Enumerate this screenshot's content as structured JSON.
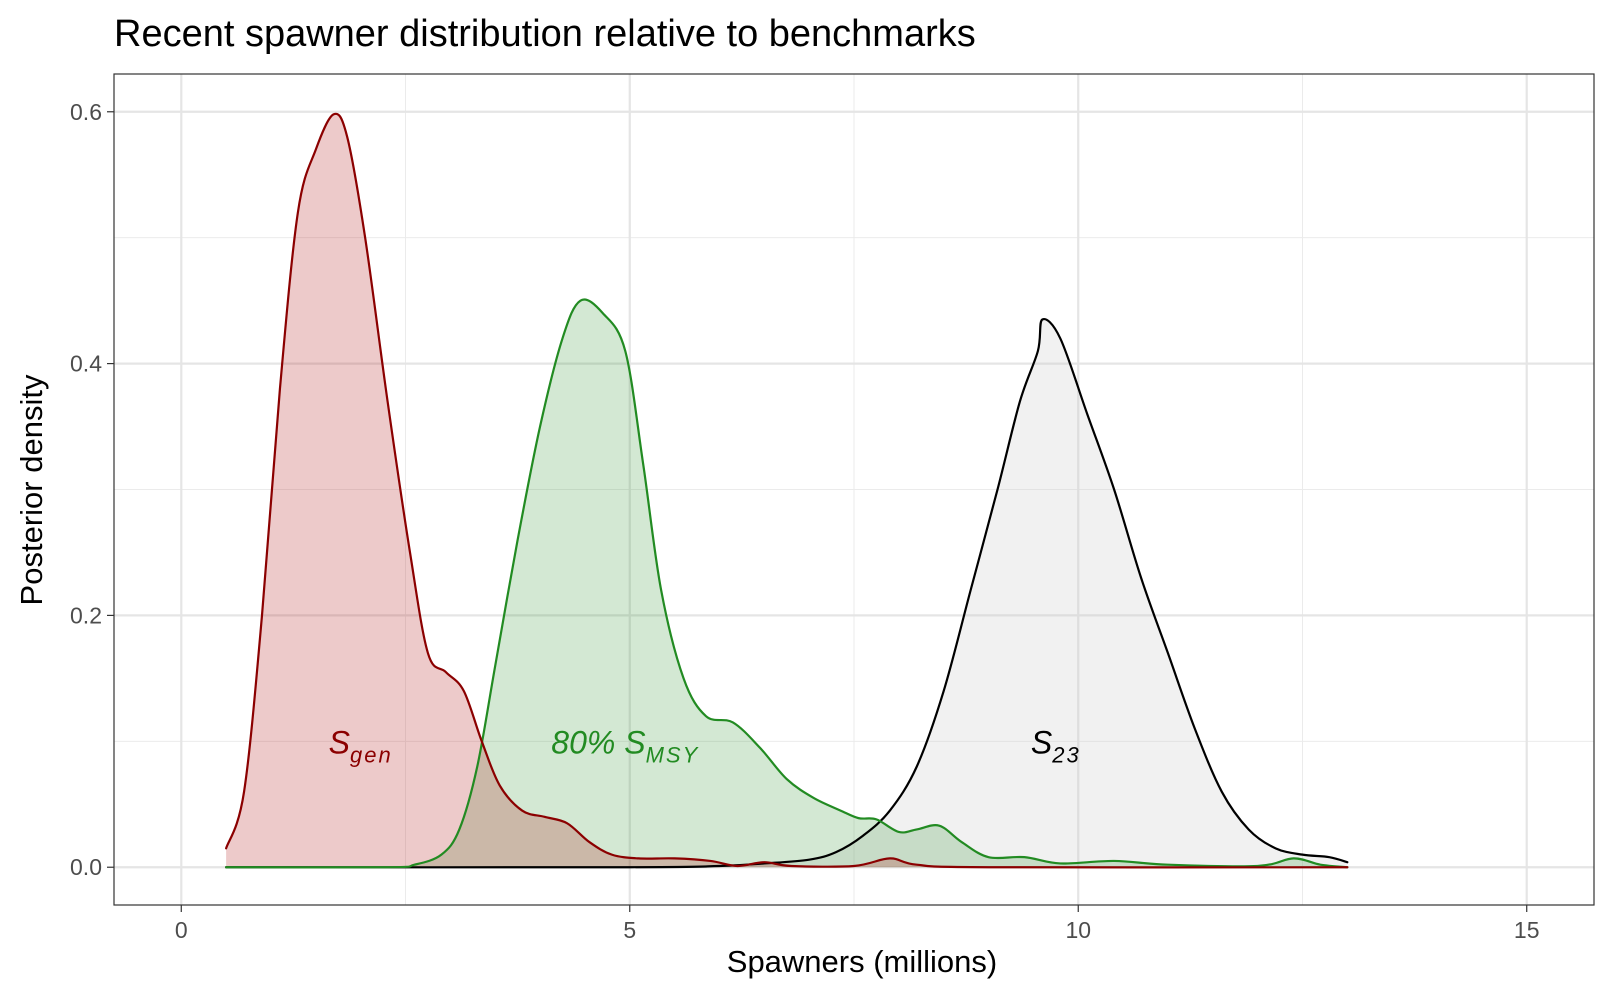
{
  "chart_data": {
    "type": "area",
    "title": "Recent spawner distribution relative to benchmarks",
    "xlabel": "Spawners (millions)",
    "ylabel": "Posterior density",
    "xlim": [
      -0.75,
      15.75
    ],
    "ylim": [
      -0.03,
      0.63
    ],
    "x_ticks": [
      0,
      5,
      10,
      15
    ],
    "x_tick_labels": [
      "0",
      "5",
      "10",
      "15"
    ],
    "y_ticks": [
      0.0,
      0.2,
      0.4,
      0.6
    ],
    "y_tick_labels": [
      "0.0",
      "0.2",
      "0.4",
      "0.6"
    ],
    "grid": true,
    "legend": "none",
    "series": [
      {
        "key": "s23",
        "stroke": "#000000",
        "fill": "#cccccc",
        "fill_opacity": 0.28,
        "points": [
          [
            0.5,
            0
          ],
          [
            5,
            0
          ],
          [
            6,
            0.001
          ],
          [
            6.5,
            0.003
          ],
          [
            7,
            0.006
          ],
          [
            7.3,
            0.012
          ],
          [
            7.6,
            0.025
          ],
          [
            7.9,
            0.045
          ],
          [
            8.2,
            0.08
          ],
          [
            8.5,
            0.14
          ],
          [
            8.8,
            0.22
          ],
          [
            9.1,
            0.3
          ],
          [
            9.35,
            0.37
          ],
          [
            9.55,
            0.41
          ],
          [
            9.6,
            0.435
          ],
          [
            9.8,
            0.42
          ],
          [
            10.1,
            0.36
          ],
          [
            10.4,
            0.3
          ],
          [
            10.7,
            0.23
          ],
          [
            11.0,
            0.17
          ],
          [
            11.3,
            0.11
          ],
          [
            11.6,
            0.06
          ],
          [
            11.9,
            0.03
          ],
          [
            12.2,
            0.015
          ],
          [
            12.5,
            0.01
          ],
          [
            12.8,
            0.008
          ],
          [
            13,
            0.004
          ]
        ]
      },
      {
        "key": "smsy80",
        "stroke": "#228b22",
        "fill": "#228b22",
        "fill_opacity": 0.2,
        "points": [
          [
            0.5,
            0
          ],
          [
            2.3,
            0
          ],
          [
            2.6,
            0.002
          ],
          [
            2.9,
            0.01
          ],
          [
            3.1,
            0.03
          ],
          [
            3.3,
            0.08
          ],
          [
            3.5,
            0.16
          ],
          [
            3.75,
            0.26
          ],
          [
            4.0,
            0.35
          ],
          [
            4.25,
            0.42
          ],
          [
            4.45,
            0.45
          ],
          [
            4.7,
            0.44
          ],
          [
            4.95,
            0.41
          ],
          [
            5.15,
            0.32
          ],
          [
            5.35,
            0.22
          ],
          [
            5.6,
            0.15
          ],
          [
            5.85,
            0.12
          ],
          [
            6.15,
            0.115
          ],
          [
            6.45,
            0.095
          ],
          [
            6.75,
            0.07
          ],
          [
            7.05,
            0.055
          ],
          [
            7.35,
            0.045
          ],
          [
            7.55,
            0.039
          ],
          [
            7.75,
            0.038
          ],
          [
            8.0,
            0.028
          ],
          [
            8.2,
            0.03
          ],
          [
            8.45,
            0.033
          ],
          [
            8.7,
            0.02
          ],
          [
            9.0,
            0.008
          ],
          [
            9.4,
            0.008
          ],
          [
            9.8,
            0.003
          ],
          [
            10.4,
            0.005
          ],
          [
            11.0,
            0.002
          ],
          [
            12.0,
            0.001
          ],
          [
            12.4,
            0.007
          ],
          [
            12.7,
            0.002
          ],
          [
            13,
            0
          ]
        ]
      },
      {
        "key": "sgen",
        "stroke": "#8b0000",
        "fill": "#b22222",
        "fill_opacity": 0.24,
        "points": [
          [
            0.5,
            0.015
          ],
          [
            0.7,
            0.06
          ],
          [
            0.9,
            0.2
          ],
          [
            1.1,
            0.38
          ],
          [
            1.3,
            0.52
          ],
          [
            1.5,
            0.57
          ],
          [
            1.7,
            0.598
          ],
          [
            1.85,
            0.58
          ],
          [
            2.05,
            0.5
          ],
          [
            2.3,
            0.37
          ],
          [
            2.55,
            0.25
          ],
          [
            2.75,
            0.17
          ],
          [
            2.95,
            0.155
          ],
          [
            3.15,
            0.14
          ],
          [
            3.35,
            0.1
          ],
          [
            3.55,
            0.065
          ],
          [
            3.8,
            0.045
          ],
          [
            4.05,
            0.04
          ],
          [
            4.3,
            0.035
          ],
          [
            4.55,
            0.02
          ],
          [
            4.8,
            0.01
          ],
          [
            5.1,
            0.007
          ],
          [
            5.5,
            0.007
          ],
          [
            5.9,
            0.005
          ],
          [
            6.2,
            0.001
          ],
          [
            6.5,
            0.004
          ],
          [
            6.8,
            0.001
          ],
          [
            7.5,
            0.001
          ],
          [
            7.9,
            0.007
          ],
          [
            8.2,
            0.002
          ],
          [
            9,
            0
          ],
          [
            13,
            0
          ]
        ]
      }
    ],
    "annotations": [
      {
        "key": "sgen",
        "text": "S",
        "sub": "gen",
        "x": 2.0,
        "y": 0.1,
        "color": "#8b0000"
      },
      {
        "key": "smsy80",
        "text": "80% S",
        "sub": "MSY",
        "x": 4.95,
        "y": 0.1,
        "color": "#228b22"
      },
      {
        "key": "s23",
        "text": "S",
        "sub": "23",
        "x": 9.75,
        "y": 0.1,
        "color": "#000000"
      }
    ]
  }
}
